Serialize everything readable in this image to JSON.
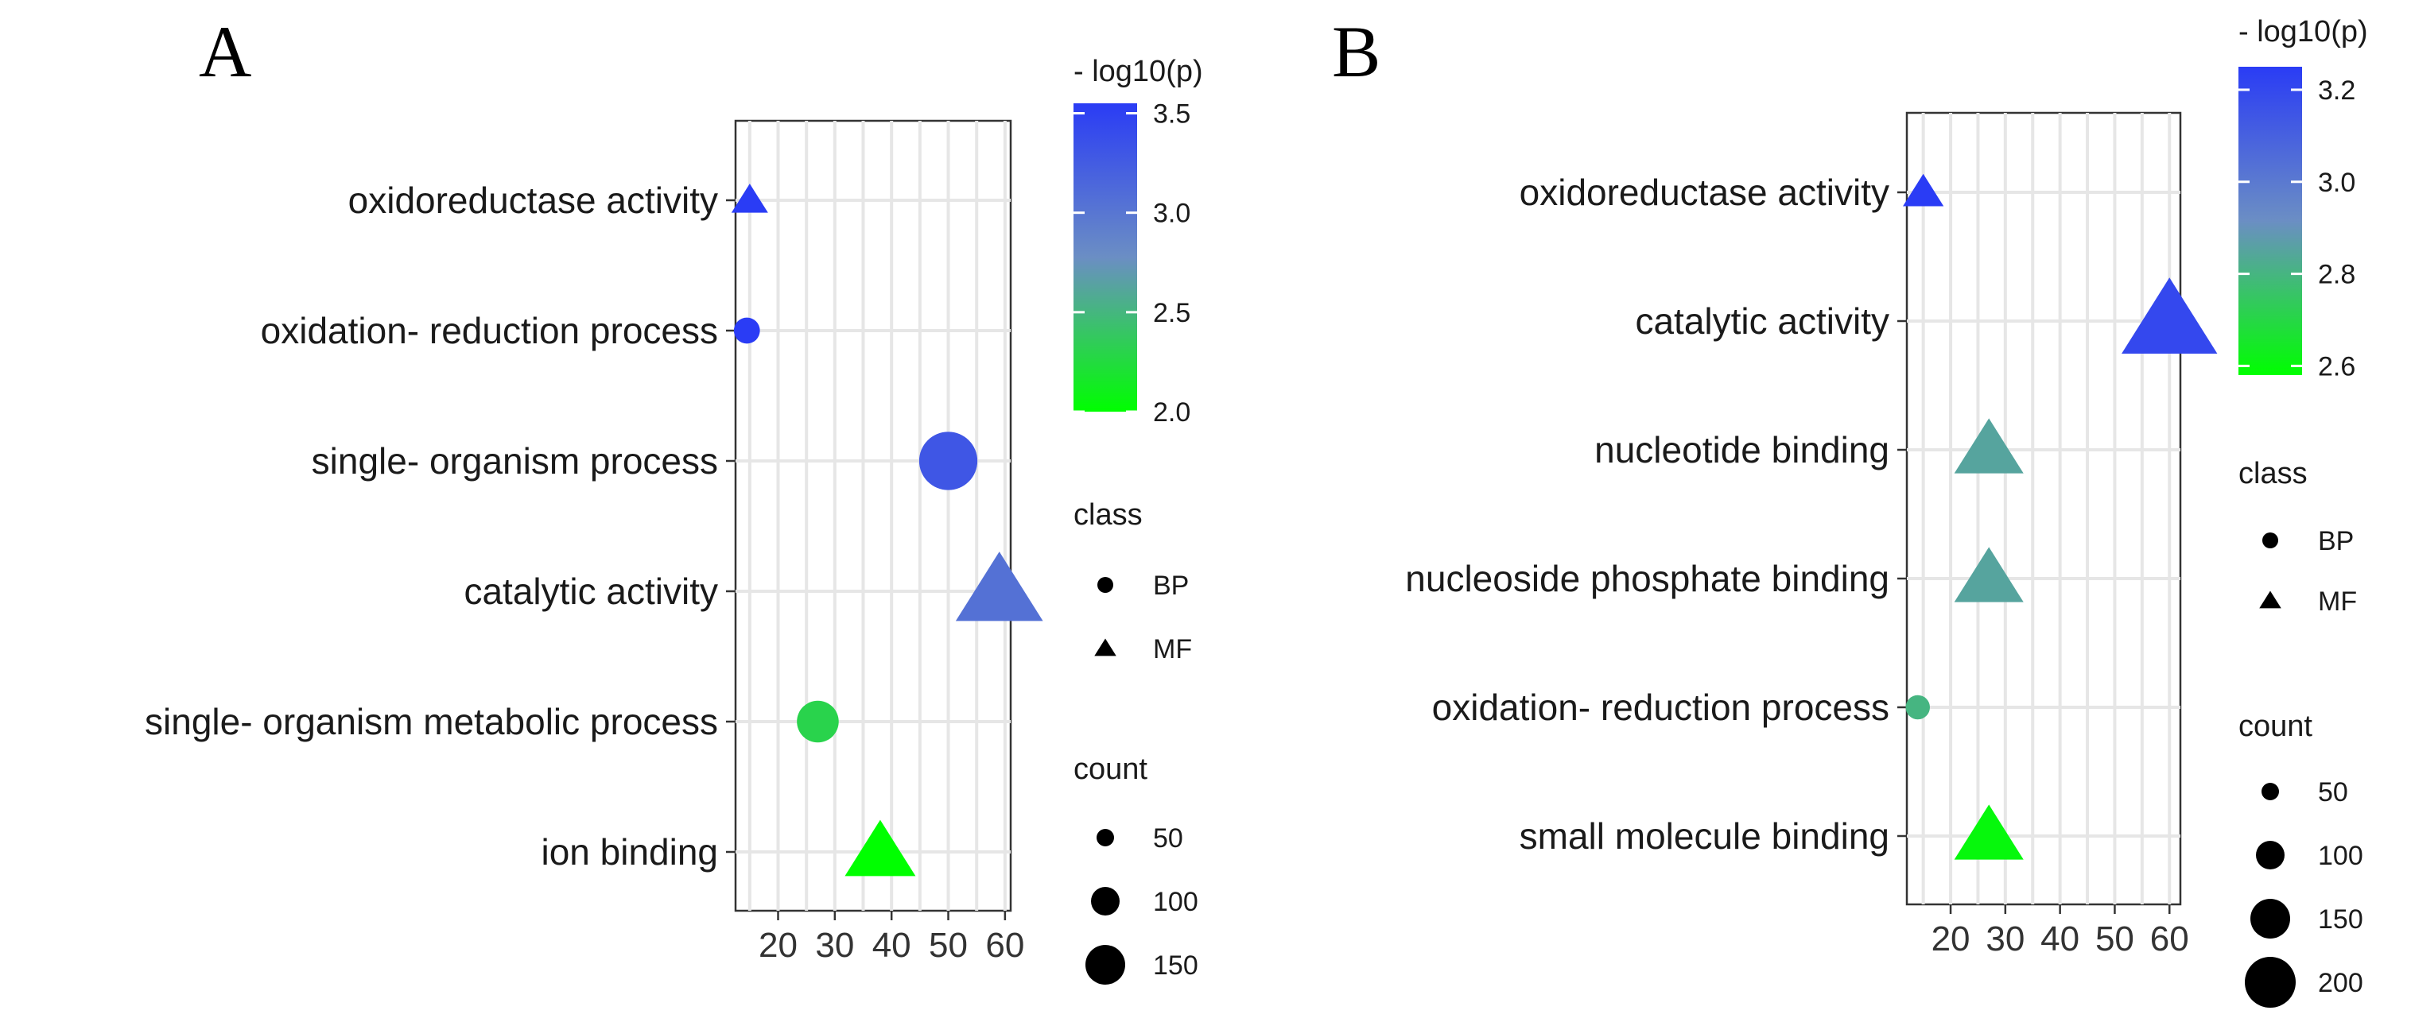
{
  "chart_data": [
    {
      "panel": "A",
      "type": "scatter",
      "categories": [
        "oxidoreductase activity",
        "oxidation- reduction process",
        "single- organism process",
        "catalytic activity",
        "single- organism metabolic process",
        "ion binding"
      ],
      "x_ticks": [
        20,
        30,
        40,
        50,
        60
      ],
      "xlim": [
        12.5,
        61
      ],
      "points": [
        {
          "term": "oxidoreductase activity",
          "x": 15,
          "class": "MF",
          "count": 14,
          "neglog10p": 3.6
        },
        {
          "term": "oxidation- reduction process",
          "x": 14.5,
          "class": "BP",
          "count": 13,
          "neglog10p": 3.6
        },
        {
          "term": "single- organism process",
          "x": 50,
          "class": "BP",
          "count": 130,
          "neglog10p": 3.3
        },
        {
          "term": "catalytic activity",
          "x": 59,
          "class": "MF",
          "count": 160,
          "neglog10p": 3.05
        },
        {
          "term": "single- organism metabolic process",
          "x": 27,
          "class": "BP",
          "count": 55,
          "neglog10p": 2.3
        },
        {
          "term": "ion binding",
          "x": 38,
          "class": "MF",
          "count": 95,
          "neglog10p": 2.0
        }
      ],
      "color_legend": {
        "title": "- log10(p)",
        "range": [
          2.0,
          3.55
        ],
        "ticks": [
          "2.0",
          "2.5",
          "3.0",
          "3.5"
        ],
        "low_color": "#00ff00",
        "mid_color": "#6b8ec4",
        "high_color": "#2a3cf5"
      },
      "shape_legend": {
        "title": "class",
        "items": [
          "BP",
          "MF"
        ]
      },
      "size_legend": {
        "title": "count",
        "items": [
          "50",
          "100",
          "150"
        ]
      }
    },
    {
      "panel": "B",
      "type": "scatter",
      "categories": [
        "oxidoreductase activity",
        "catalytic activity",
        "nucleotide binding",
        "nucleoside phosphate binding",
        "oxidation- reduction process",
        "small molecule binding"
      ],
      "x_ticks": [
        20,
        30,
        40,
        50,
        60
      ],
      "xlim": [
        12,
        62
      ],
      "points": [
        {
          "term": "oxidoreductase activity",
          "x": 15,
          "class": "MF",
          "count": 20,
          "neglog10p": 3.25
        },
        {
          "term": "catalytic activity",
          "x": 60,
          "class": "MF",
          "count": 200,
          "neglog10p": 3.2
        },
        {
          "term": "nucleotide binding",
          "x": 27,
          "class": "MF",
          "count": 90,
          "neglog10p": 2.85
        },
        {
          "term": "nucleoside phosphate binding",
          "x": 27,
          "class": "MF",
          "count": 90,
          "neglog10p": 2.85
        },
        {
          "term": "oxidation- reduction process",
          "x": 14,
          "class": "BP",
          "count": 10,
          "neglog10p": 2.8
        },
        {
          "term": "small molecule binding",
          "x": 27,
          "class": "MF",
          "count": 90,
          "neglog10p": 2.6
        }
      ],
      "color_legend": {
        "title": "- log10(p)",
        "range": [
          2.58,
          3.25
        ],
        "ticks": [
          "2.6",
          "2.8",
          "3.0",
          "3.2"
        ],
        "low_color": "#00ff00",
        "mid_color": "#6b8ec4",
        "high_color": "#2a3cf5"
      },
      "shape_legend": {
        "title": "class",
        "items": [
          "BP",
          "MF"
        ]
      },
      "size_legend": {
        "title": "count",
        "items": [
          "50",
          "100",
          "150",
          "200"
        ]
      }
    }
  ]
}
